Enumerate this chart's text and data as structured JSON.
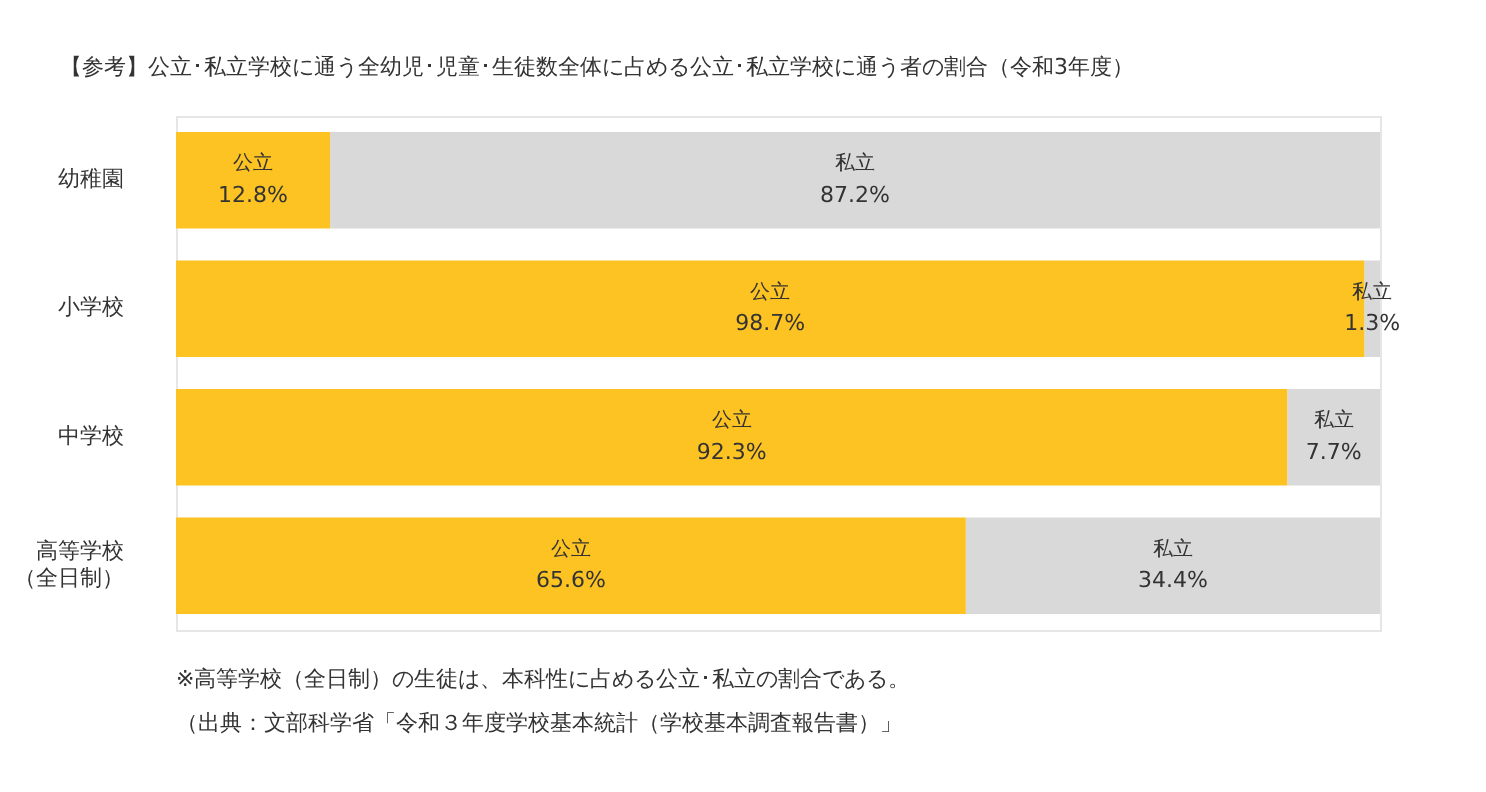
{
  "chart_data": {
    "type": "bar",
    "orientation": "horizontal",
    "stacked": true,
    "title": "【参考】公立･私立学校に通う全幼児･児童･生徒数全体に占める公立･私立学校に通う者の割合（令和3年度）",
    "categories": [
      "幼稚園",
      "小学校",
      "中学校",
      "高等学校（全日制）"
    ],
    "series": [
      {
        "name": "公立",
        "color": "#fdc322",
        "values": [
          12.8,
          98.7,
          92.3,
          65.6
        ],
        "value_labels": [
          "12.8%",
          "98.7%",
          "92.3%",
          "65.6%"
        ]
      },
      {
        "name": "私立",
        "color": "#d9d9d9",
        "values": [
          87.2,
          1.3,
          7.7,
          34.4
        ],
        "value_labels": [
          "87.2%",
          "1.3%",
          "7.7%",
          "34.4%"
        ]
      }
    ],
    "legend": false,
    "annotations": [
      "※高等学校（全日制）の生徒は、本科性に占める公立･私立の割合である。",
      "（出典：文部科学省「令和３年度学校基本統計（学校基本調査報告書）」"
    ]
  }
}
